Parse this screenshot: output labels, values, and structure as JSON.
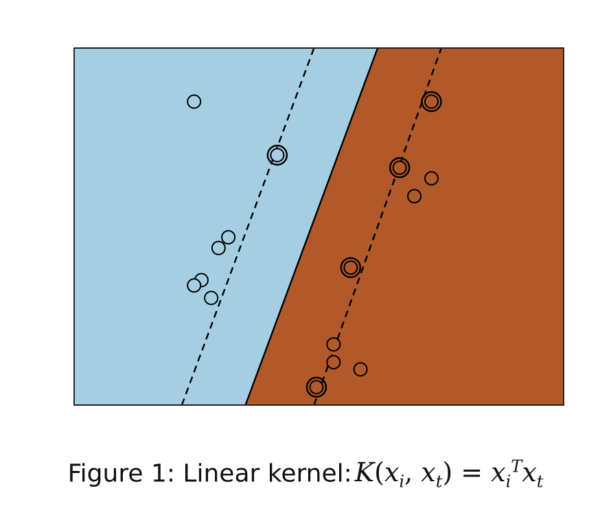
{
  "caption": {
    "prefix": "Figure 1: Linear kernel:",
    "formula": "K(x_i, x_t) = x_i^T x_t"
  },
  "chart_data": {
    "type": "scatter",
    "title": "",
    "xlabel": "",
    "ylabel": "",
    "xlim": [
      0,
      10
    ],
    "ylim": [
      0,
      10
    ],
    "grid": false,
    "legend": "none",
    "colors": {
      "region_negative": "#a6cee3",
      "region_positive": "#b15928",
      "decision_boundary": "#000000",
      "margin": "#000000",
      "point_edge": "#000000"
    },
    "decision_boundary": [
      [
        3.5,
        0
      ],
      [
        6.2,
        10
      ]
    ],
    "margins": [
      [
        [
          2.2,
          0
        ],
        [
          4.9,
          10
        ]
      ],
      [
        [
          4.9,
          0
        ],
        [
          7.5,
          10
        ]
      ]
    ],
    "points": [
      {
        "x": 2.45,
        "y": 8.5,
        "support": false
      },
      {
        "x": 4.15,
        "y": 7.0,
        "support": true
      },
      {
        "x": 3.15,
        "y": 4.7,
        "support": false
      },
      {
        "x": 2.95,
        "y": 4.4,
        "support": false
      },
      {
        "x": 2.6,
        "y": 3.5,
        "support": false
      },
      {
        "x": 2.45,
        "y": 3.35,
        "support": false
      },
      {
        "x": 2.8,
        "y": 3.0,
        "support": false
      },
      {
        "x": 7.3,
        "y": 8.5,
        "support": true
      },
      {
        "x": 6.65,
        "y": 6.65,
        "support": true
      },
      {
        "x": 7.3,
        "y": 6.35,
        "support": false
      },
      {
        "x": 6.95,
        "y": 5.85,
        "support": false
      },
      {
        "x": 5.65,
        "y": 3.85,
        "support": true
      },
      {
        "x": 5.3,
        "y": 1.7,
        "support": false
      },
      {
        "x": 5.3,
        "y": 1.2,
        "support": false
      },
      {
        "x": 5.85,
        "y": 1.0,
        "support": false
      },
      {
        "x": 4.95,
        "y": 0.5,
        "support": true
      }
    ]
  }
}
